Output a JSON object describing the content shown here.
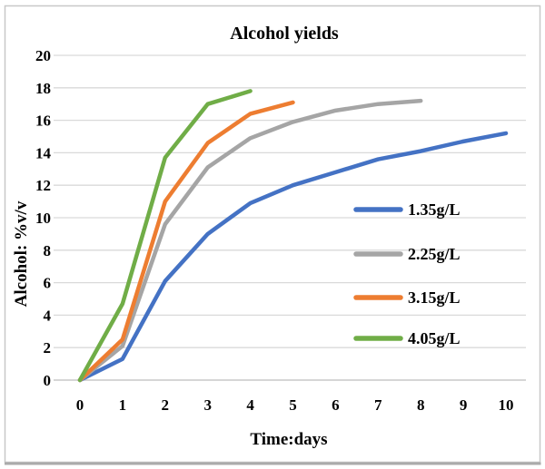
{
  "chart_data": {
    "type": "line",
    "title": "Alcohol yields",
    "xlabel": "Time:days",
    "ylabel": "Alcohol: %v/v",
    "xlim": [
      0,
      10
    ],
    "ylim": [
      0,
      20
    ],
    "xtick_step": 1,
    "ytick_step": 2,
    "grid": "horizontal-only",
    "legend_position": "right-middle",
    "series": [
      {
        "name": "1.35g/L",
        "color": "#4472C4",
        "x": [
          0,
          1,
          2,
          3,
          4,
          5,
          6,
          7,
          8,
          9,
          10
        ],
        "y": [
          0,
          1.3,
          6.1,
          9.0,
          10.9,
          12.0,
          12.8,
          13.6,
          14.1,
          14.7,
          15.2
        ]
      },
      {
        "name": "2.25g/L",
        "color": "#A5A5A5",
        "x": [
          0,
          1,
          2,
          3,
          4,
          5,
          6,
          7,
          8
        ],
        "y": [
          0,
          2.1,
          9.6,
          13.1,
          14.9,
          15.9,
          16.6,
          17.0,
          17.2
        ]
      },
      {
        "name": "3.15g/L",
        "color": "#ED7D31",
        "x": [
          0,
          1,
          2,
          3,
          4,
          5
        ],
        "y": [
          0,
          2.5,
          11.0,
          14.6,
          16.4,
          17.1
        ]
      },
      {
        "name": "4.05g/L",
        "color": "#70AD47",
        "x": [
          0,
          1,
          2,
          3,
          4
        ],
        "y": [
          0,
          4.7,
          13.7,
          17.0,
          17.8
        ]
      }
    ]
  },
  "colors": {
    "gridline": "#D9D9D9",
    "axis_line": "#C9C9C9",
    "text": "#000000",
    "frame_border": "#C8C8C8",
    "frame_shadow": "#ABABAB",
    "background": "#FFFFFF"
  }
}
